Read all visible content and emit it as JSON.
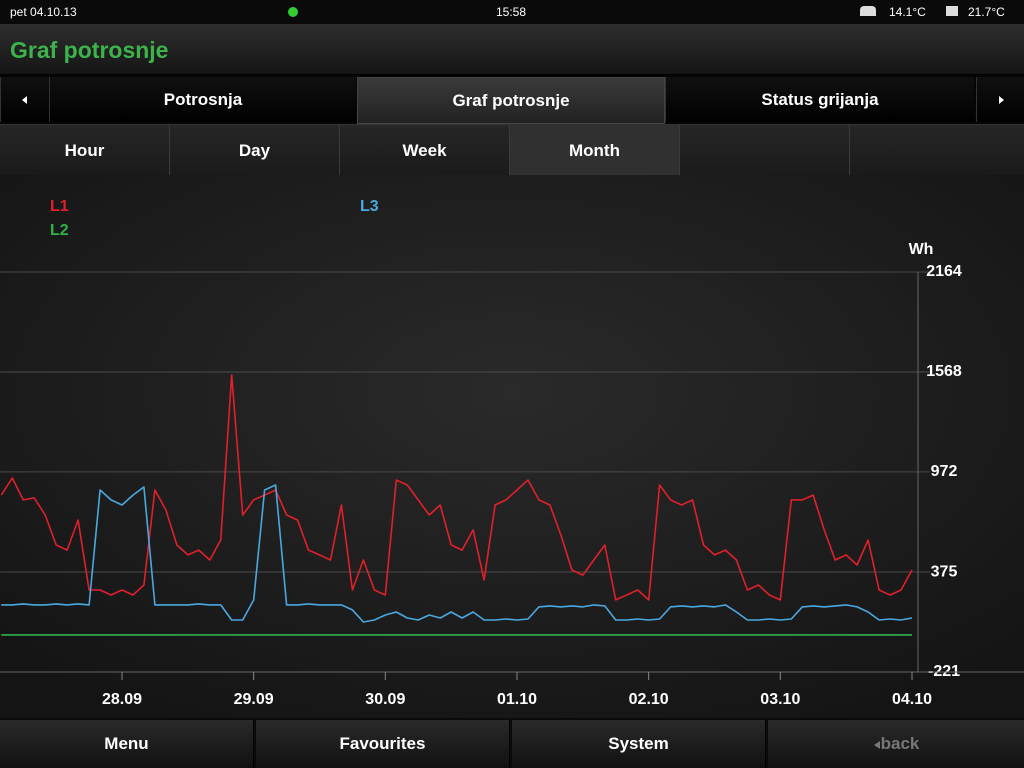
{
  "status_bar": {
    "date": "pet 04.10.13",
    "time": "15:58",
    "outdoor_temp": "14.1°C",
    "indoor_temp": "21.7°C"
  },
  "header": {
    "title": "Graf potrosnje"
  },
  "tabs": [
    "Potrosnja",
    "Graf potrosnje",
    "Status grijanja"
  ],
  "periods": [
    "Hour",
    "Day",
    "Week",
    "Month"
  ],
  "chart_data": {
    "type": "line",
    "y_unit": "Wh",
    "categories": [
      null,
      null,
      null,
      null,
      null,
      null,
      null,
      null,
      null,
      null,
      null,
      "28.09",
      null,
      null,
      null,
      null,
      null,
      null,
      null,
      null,
      null,
      null,
      null,
      "29.09",
      null,
      null,
      null,
      null,
      null,
      null,
      null,
      null,
      null,
      null,
      null,
      "30.09",
      null,
      null,
      null,
      null,
      null,
      null,
      null,
      null,
      null,
      null,
      null,
      "01.10",
      null,
      null,
      null,
      null,
      null,
      null,
      null,
      null,
      null,
      null,
      null,
      "02.10",
      null,
      null,
      null,
      null,
      null,
      null,
      null,
      null,
      null,
      null,
      null,
      "03.10",
      null,
      null,
      null,
      null,
      null,
      null,
      null,
      null,
      null,
      null,
      null,
      "04.10"
    ],
    "series": [
      {
        "name": "L1",
        "color": "#e0202a",
        "values": [
          834,
          936,
          805,
          817,
          715,
          536,
          506,
          685,
          268,
          268,
          238,
          268,
          238,
          298,
          864,
          745,
          536,
          477,
          506,
          447,
          566,
          1550,
          715,
          805,
          834,
          864,
          715,
          685,
          506,
          477,
          447,
          775,
          268,
          447,
          268,
          238,
          924,
          894,
          805,
          715,
          775,
          536,
          506,
          626,
          328,
          775,
          805,
          864,
          924,
          805,
          775,
          596,
          387,
          357,
          447,
          536,
          209,
          238,
          268,
          209,
          894,
          805,
          775,
          805,
          536,
          477,
          506,
          447,
          268,
          298,
          238,
          209,
          805,
          805,
          834,
          626,
          447,
          477,
          417,
          566,
          268,
          238,
          268,
          387
        ]
      },
      {
        "name": "L2",
        "color": "#2db34a",
        "values": [
          0,
          0,
          0,
          0,
          0,
          0,
          0,
          0,
          0,
          0,
          0,
          0,
          0,
          0,
          0,
          0,
          0,
          0,
          0,
          0,
          0,
          0,
          0,
          0,
          0,
          0,
          0,
          0,
          0,
          0,
          0,
          0,
          0,
          0,
          0,
          0,
          0,
          0,
          0,
          0,
          0,
          0,
          0,
          0,
          0,
          0,
          0,
          0,
          0,
          0,
          0,
          0,
          0,
          0,
          0,
          0,
          0,
          0,
          0,
          0,
          0,
          0,
          0,
          0,
          0,
          0,
          0,
          0,
          0,
          0,
          0,
          0,
          0,
          0,
          0,
          0,
          0,
          0,
          0,
          0,
          0,
          0,
          0,
          0
        ]
      },
      {
        "name": "L3",
        "color": "#4aa8e0",
        "values": [
          179,
          179,
          185,
          179,
          179,
          185,
          179,
          185,
          179,
          864,
          805,
          775,
          834,
          882,
          179,
          179,
          179,
          179,
          185,
          179,
          179,
          89,
          89,
          209,
          864,
          894,
          179,
          179,
          185,
          179,
          179,
          179,
          149,
          77,
          89,
          119,
          137,
          101,
          89,
          119,
          101,
          137,
          101,
          137,
          89,
          89,
          95,
          89,
          95,
          167,
          173,
          167,
          173,
          167,
          179,
          173,
          89,
          89,
          95,
          89,
          95,
          167,
          173,
          167,
          173,
          167,
          179,
          137,
          89,
          89,
          95,
          89,
          95,
          167,
          173,
          167,
          173,
          179,
          167,
          137,
          89,
          95,
          89,
          101
        ]
      }
    ],
    "ylim": [
      -221,
      2164
    ],
    "yticks": [
      -221,
      375,
      972,
      1568,
      2164
    ],
    "grid": true
  },
  "footer": [
    "Menu",
    "Favourites",
    "System",
    "back"
  ]
}
